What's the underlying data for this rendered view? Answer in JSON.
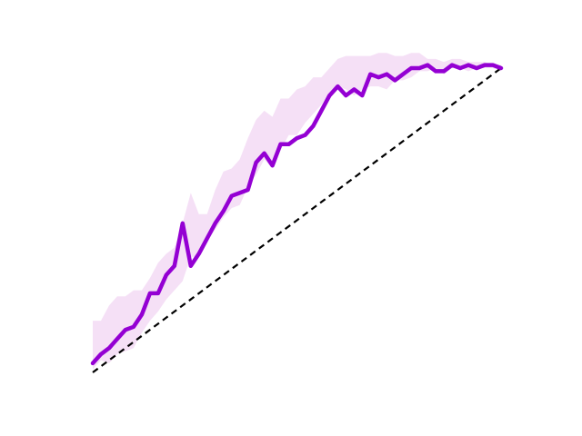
{
  "chart_data": {
    "type": "line",
    "title": "",
    "xlabel": "",
    "ylabel": "",
    "xlim": [
      0,
      1
    ],
    "ylim": [
      0,
      1
    ],
    "grid": false,
    "axes_visible": false,
    "series": [
      {
        "kind": "band",
        "color": "#d070d8",
        "x": [
          0,
          0.02,
          0.04,
          0.06,
          0.08,
          0.1,
          0.12,
          0.14,
          0.16,
          0.18,
          0.2,
          0.22,
          0.24,
          0.26,
          0.28,
          0.3,
          0.32,
          0.34,
          0.36,
          0.38,
          0.4,
          0.42,
          0.44,
          0.46,
          0.48,
          0.5,
          0.52,
          0.54,
          0.56,
          0.58,
          0.6,
          0.62,
          0.64,
          0.66,
          0.68,
          0.7,
          0.72,
          0.74,
          0.76,
          0.78,
          0.8,
          0.82,
          0.84,
          0.86,
          0.88,
          0.9,
          0.92,
          0.94,
          0.96,
          0.98,
          1.0
        ],
        "upper": [
          0.17,
          0.17,
          0.22,
          0.25,
          0.25,
          0.27,
          0.27,
          0.31,
          0.36,
          0.39,
          0.41,
          0.49,
          0.59,
          0.52,
          0.52,
          0.6,
          0.66,
          0.67,
          0.7,
          0.77,
          0.83,
          0.86,
          0.84,
          0.9,
          0.9,
          0.93,
          0.94,
          0.97,
          0.97,
          1.0,
          1.03,
          1.04,
          1.04,
          1.04,
          1.04,
          1.05,
          1.05,
          1.04,
          1.04,
          1.05,
          1.05,
          1.03,
          1.03,
          1.02,
          1.03,
          1.03,
          1.02,
          1.02,
          1.02,
          1.01,
          1.01
        ],
        "lower": [
          0.01,
          0.04,
          0.03,
          0.06,
          0.07,
          0.08,
          0.13,
          0.17,
          0.2,
          0.24,
          0.27,
          0.3,
          0.38,
          0.38,
          0.43,
          0.47,
          0.51,
          0.54,
          0.55,
          0.61,
          0.65,
          0.7,
          0.67,
          0.73,
          0.78,
          0.78,
          0.82,
          0.85,
          0.88,
          0.92,
          0.94,
          0.93,
          0.91,
          0.93,
          0.94,
          0.94,
          0.93,
          0.96,
          0.96,
          0.97,
          0.99,
          0.99,
          1.0,
          0.98,
          1.0,
          1.0,
          0.99,
          1.0,
          1.0,
          1.0,
          0.99
        ]
      },
      {
        "kind": "line",
        "color": "#9400d3",
        "x": [
          0,
          0.02,
          0.04,
          0.06,
          0.08,
          0.1,
          0.12,
          0.14,
          0.16,
          0.18,
          0.2,
          0.22,
          0.24,
          0.26,
          0.28,
          0.3,
          0.32,
          0.34,
          0.36,
          0.38,
          0.4,
          0.42,
          0.44,
          0.46,
          0.48,
          0.5,
          0.52,
          0.54,
          0.56,
          0.58,
          0.6,
          0.62,
          0.64,
          0.66,
          0.68,
          0.7,
          0.72,
          0.74,
          0.76,
          0.78,
          0.8,
          0.82,
          0.84,
          0.86,
          0.88,
          0.9,
          0.92,
          0.94,
          0.96,
          0.98,
          1.0
        ],
        "values": [
          0.03,
          0.06,
          0.08,
          0.11,
          0.14,
          0.15,
          0.19,
          0.26,
          0.26,
          0.32,
          0.35,
          0.49,
          0.35,
          0.39,
          0.44,
          0.49,
          0.53,
          0.58,
          0.59,
          0.6,
          0.69,
          0.72,
          0.68,
          0.75,
          0.75,
          0.77,
          0.78,
          0.81,
          0.86,
          0.91,
          0.94,
          0.91,
          0.93,
          0.91,
          0.98,
          0.97,
          0.98,
          0.96,
          0.98,
          1.0,
          1.0,
          1.01,
          0.99,
          0.99,
          1.01,
          1.0,
          1.01,
          1.0,
          1.01,
          1.01,
          1.0
        ]
      },
      {
        "kind": "reference",
        "style": "dashed",
        "color": "#000000",
        "x": [
          0,
          1
        ],
        "values": [
          0,
          1
        ]
      }
    ]
  }
}
